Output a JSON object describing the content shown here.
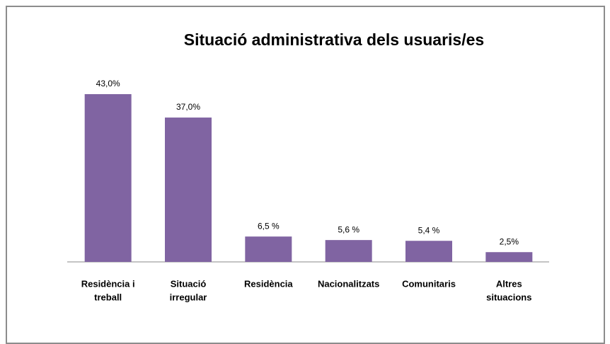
{
  "chart_data": {
    "type": "bar",
    "title": "Situació administrativa dels usuaris/es",
    "categories": [
      [
        "Residència i",
        "treball"
      ],
      [
        "Situació",
        "irregular"
      ],
      [
        "Residència"
      ],
      [
        "Nacionalitzats"
      ],
      [
        "Comunitaris"
      ],
      [
        "Altres",
        "situacions"
      ]
    ],
    "values": [
      43.0,
      37.0,
      6.5,
      5.6,
      5.4,
      2.5
    ],
    "value_labels": [
      "43,0%",
      "37,0%",
      "6,5 %",
      "5,6 %",
      "5,4 %",
      "2,5%"
    ],
    "color": "#8064a2"
  }
}
